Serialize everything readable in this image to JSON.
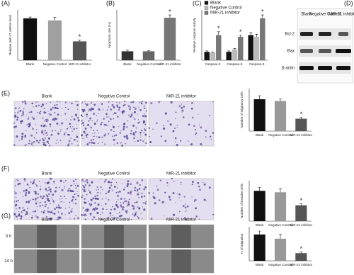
{
  "panel_labels": [
    "(A)",
    "(B)",
    "(C)",
    "(D)",
    "(E)",
    "(F)",
    "(G)"
  ],
  "blot": {
    "columns": [
      "Blank",
      "Negative Control",
      "MiR-21 inhibitor"
    ],
    "rows": [
      "Bcl-2",
      "Bax",
      "β-actin"
    ]
  },
  "image_panels": [
    {
      "columns": [
        "Blank",
        "Negative Control",
        "MiR-21 inhibitor"
      ]
    },
    {
      "columns": [
        "Blank",
        "Negative Control",
        "MiR-21 inhibitor"
      ]
    },
    {
      "columns": [
        "Blank",
        "Negative Control",
        "MiR-21 inhibitor"
      ],
      "rows": [
        "0 h",
        "24 h"
      ]
    }
  ],
  "chart_data": [
    {
      "type": "bar",
      "ylabel": "Relative miR-21 mRNA level",
      "categories": [
        "Blank",
        "Negative Control",
        "MiR-21 inhibitor"
      ],
      "values": [
        1.0,
        0.95,
        0.45
      ],
      "errors": [
        0.03,
        0.07,
        0.03
      ],
      "colors": [
        "#111111",
        "#a0a0a0",
        "#555555"
      ],
      "ylim": [
        0,
        1.2
      ],
      "annotations": [
        "*"
      ]
    },
    {
      "type": "bar",
      "ylabel": "Apoptosis rate (%)",
      "categories": [
        "Blank",
        "Negative Control",
        "MiR-21 inhibitor"
      ],
      "values": [
        8,
        8,
        38
      ],
      "errors": [
        1,
        0.6,
        2.5
      ],
      "colors": [
        "#333333",
        "#666666",
        "#777777"
      ],
      "ylim": [
        0,
        45
      ],
      "annotations": [
        "*"
      ]
    },
    {
      "type": "bar",
      "ylabel": "Relative caspase activity",
      "categories": [
        "Caspase-3",
        "Caspase-8",
        "Caspase-9"
      ],
      "series": [
        {
          "name": "Blank",
          "color": "#111111",
          "values": [
            1.0,
            1.0,
            3.0
          ],
          "errors": [
            0.1,
            0.1,
            0.3
          ]
        },
        {
          "name": "Negative Control",
          "color": "#bbbbbb",
          "values": [
            0.9,
            1.3,
            2.8
          ],
          "errors": [
            0.1,
            0.1,
            0.3
          ]
        },
        {
          "name": "MiR-21 inhibitor",
          "color": "#777777",
          "values": [
            3.0,
            2.8,
            5.0
          ],
          "errors": [
            0.4,
            0.2,
            0.4
          ]
        }
      ],
      "ylim": [
        0,
        6
      ],
      "legend": "upper left",
      "annotations": [
        "*",
        "*",
        "*"
      ]
    },
    {
      "type": "bar",
      "ylabel": "Number of migratory cells",
      "categories": [
        "Blank",
        "Negative Control",
        "MiR-21 inhibitor"
      ],
      "values": [
        90,
        85,
        35
      ],
      "errors": [
        10,
        6,
        4
      ],
      "colors": [
        "#111111",
        "#999999",
        "#555555"
      ],
      "ylim": [
        0,
        120
      ],
      "annotations": [
        "*"
      ]
    },
    {
      "type": "bar",
      "ylabel": "Number of invasive cells",
      "categories": [
        "Blank",
        "Negative Control",
        "MiR-21 inhibitor"
      ],
      "values": [
        105,
        100,
        55
      ],
      "errors": [
        12,
        12,
        5
      ],
      "colors": [
        "#111111",
        "#999999",
        "#555555"
      ],
      "ylim": [
        0,
        140
      ],
      "annotations": [
        "*"
      ]
    },
    {
      "type": "bar",
      "ylabel": "% of migration",
      "categories": [
        "Blank",
        "Negative Control",
        "MiR-21 inhibitor"
      ],
      "values": [
        62,
        52,
        18
      ],
      "errors": [
        8,
        10,
        3
      ],
      "colors": [
        "#111111",
        "#999999",
        "#555555"
      ],
      "ylim": [
        0,
        80
      ],
      "annotations": [
        "*"
      ]
    }
  ]
}
